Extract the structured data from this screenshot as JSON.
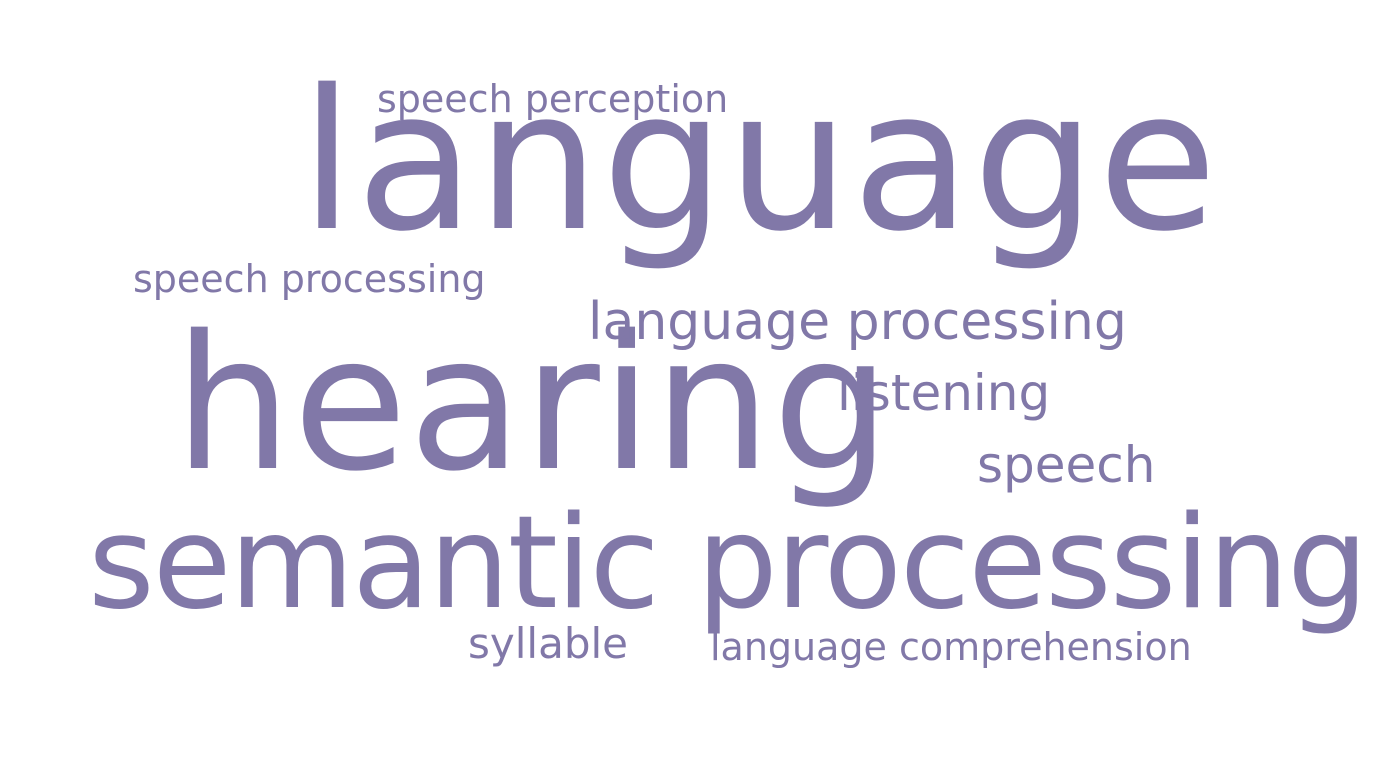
{
  "color": "#8178A8",
  "words": [
    {
      "id": "language",
      "text": "language"
    },
    {
      "id": "hearing",
      "text": "hearing"
    },
    {
      "id": "semantic-processing",
      "text": "semantic processing"
    },
    {
      "id": "speech-perception",
      "text": "speech perception"
    },
    {
      "id": "speech-processing",
      "text": "speech processing"
    },
    {
      "id": "language-processing",
      "text": "language processing"
    },
    {
      "id": "listening",
      "text": "listening"
    },
    {
      "id": "speech",
      "text": "speech"
    },
    {
      "id": "syllable",
      "text": "syllable"
    },
    {
      "id": "language-comprehension",
      "text": "language comprehension"
    }
  ]
}
